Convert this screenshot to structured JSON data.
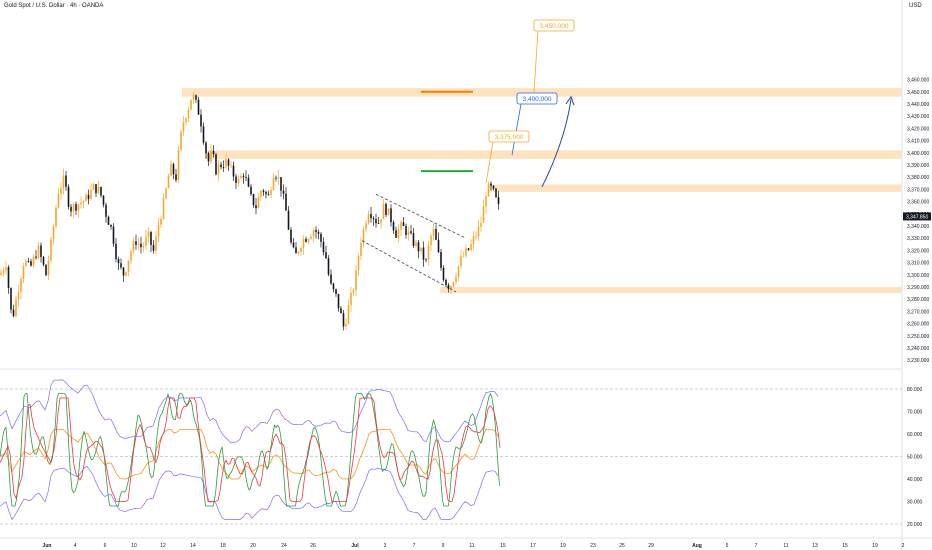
{
  "header": {
    "title": "Gold Spot / U.S. Dollar · 4h · OANDA",
    "currency": "USD"
  },
  "colors": {
    "bull": "#f7a62b",
    "bear": "#131722",
    "zone": "#fde3c0",
    "blue": "#2962ff",
    "green": "#22a83a",
    "orange": "#f57c00",
    "rsi": "#f23645",
    "stoch": "#2e9b3d",
    "band": "#7b6ff0",
    "ma": "#f7931a"
  },
  "chart_data": {
    "type": "candlestick",
    "price_axis": {
      "min": 3240,
      "max": 3460,
      "ticks": [
        "3,460.000",
        "3,450.000",
        "3,440.000",
        "3,430.000",
        "3,420.000",
        "3,410.000",
        "3,400.000",
        "3,390.000",
        "3,380.000",
        "3,370.000",
        "3,360.000",
        "3,350.000",
        "3,340.000",
        "3,330.000",
        "3,320.000",
        "3,310.000",
        "3,300.000",
        "3,290.000",
        "3,280.000",
        "3,270.000",
        "3,260.000",
        "3,250.000",
        "3,240.000",
        "3,230.000"
      ],
      "last_price": "3,347.850"
    },
    "x_axis": {
      "ticks": [
        "Jun",
        "4",
        "6",
        "10",
        "12",
        "14",
        "18",
        "20",
        "24",
        "26",
        "Jul",
        "3",
        "7",
        "9",
        "11",
        "15",
        "17",
        "19",
        "23",
        "25",
        "29",
        "Aug",
        "5",
        "7",
        "11",
        "13",
        "15",
        "19",
        "2"
      ]
    },
    "price_path": [
      [
        0,
        3300
      ],
      [
        6,
        3310
      ],
      [
        12,
        3262
      ],
      [
        18,
        3288
      ],
      [
        24,
        3312
      ],
      [
        30,
        3305
      ],
      [
        38,
        3322
      ],
      [
        46,
        3300
      ],
      [
        52,
        3330
      ],
      [
        58,
        3368
      ],
      [
        64,
        3378
      ],
      [
        70,
        3354
      ],
      [
        78,
        3358
      ],
      [
        86,
        3362
      ],
      [
        94,
        3372
      ],
      [
        100,
        3368
      ],
      [
        106,
        3350
      ],
      [
        112,
        3336
      ],
      [
        118,
        3308
      ],
      [
        124,
        3300
      ],
      [
        130,
        3318
      ],
      [
        136,
        3328
      ],
      [
        142,
        3322
      ],
      [
        148,
        3332
      ],
      [
        154,
        3318
      ],
      [
        158,
        3340
      ],
      [
        164,
        3360
      ],
      [
        170,
        3388
      ],
      [
        176,
        3380
      ],
      [
        180,
        3410
      ],
      [
        184,
        3428
      ],
      [
        188,
        3436
      ],
      [
        192,
        3448
      ],
      [
        196,
        3440
      ],
      [
        200,
        3430
      ],
      [
        204,
        3410
      ],
      [
        208,
        3392
      ],
      [
        212,
        3400
      ],
      [
        216,
        3386
      ],
      [
        220,
        3390
      ],
      [
        226,
        3392
      ],
      [
        232,
        3384
      ],
      [
        238,
        3376
      ],
      [
        244,
        3384
      ],
      [
        250,
        3364
      ],
      [
        256,
        3356
      ],
      [
        262,
        3372
      ],
      [
        268,
        3362
      ],
      [
        274,
        3386
      ],
      [
        280,
        3376
      ],
      [
        286,
        3352
      ],
      [
        292,
        3320
      ],
      [
        296,
        3316
      ],
      [
        302,
        3328
      ],
      [
        308,
        3332
      ],
      [
        314,
        3338
      ],
      [
        320,
        3330
      ],
      [
        326,
        3314
      ],
      [
        330,
        3292
      ],
      [
        336,
        3282
      ],
      [
        340,
        3270
      ],
      [
        344,
        3256
      ],
      [
        348,
        3272
      ],
      [
        352,
        3284
      ],
      [
        356,
        3300
      ],
      [
        360,
        3326
      ],
      [
        364,
        3338
      ],
      [
        368,
        3354
      ],
      [
        372,
        3350
      ],
      [
        378,
        3342
      ],
      [
        384,
        3356
      ],
      [
        390,
        3348
      ],
      [
        396,
        3334
      ],
      [
        402,
        3340
      ],
      [
        408,
        3334
      ],
      [
        414,
        3326
      ],
      [
        420,
        3320
      ],
      [
        426,
        3310
      ],
      [
        430,
        3330
      ],
      [
        434,
        3336
      ],
      [
        438,
        3318
      ],
      [
        442,
        3302
      ],
      [
        446,
        3294
      ],
      [
        450,
        3290
      ],
      [
        454,
        3298
      ],
      [
        458,
        3306
      ],
      [
        462,
        3314
      ],
      [
        466,
        3318
      ],
      [
        470,
        3322
      ],
      [
        474,
        3330
      ],
      [
        478,
        3336
      ],
      [
        482,
        3346
      ],
      [
        486,
        3368
      ],
      [
        490,
        3372
      ],
      [
        494,
        3366
      ],
      [
        498,
        3356
      ],
      [
        502,
        3347.85
      ]
    ],
    "zones": [
      {
        "low": 3446,
        "high": 3453
      },
      {
        "low": 3395,
        "high": 3402
      },
      {
        "low": 3368,
        "high": 3374
      },
      {
        "low": 3285,
        "high": 3290
      }
    ],
    "levels": [
      {
        "value": 3450,
        "label": "3,450.000",
        "color": "#f7a62b"
      },
      {
        "value": 3400,
        "label": "3,400.000",
        "color": "#2962ff"
      },
      {
        "value": 3375,
        "label": "3,375.000",
        "color": "#f7a62b"
      }
    ],
    "oscillator": {
      "min": 20,
      "max": 85,
      "ticks": [
        "80.000",
        "70.000",
        "60.000",
        "50.000",
        "40.000",
        "30.000",
        "20.000"
      ],
      "dashed_levels": [
        80,
        50,
        20
      ]
    }
  }
}
